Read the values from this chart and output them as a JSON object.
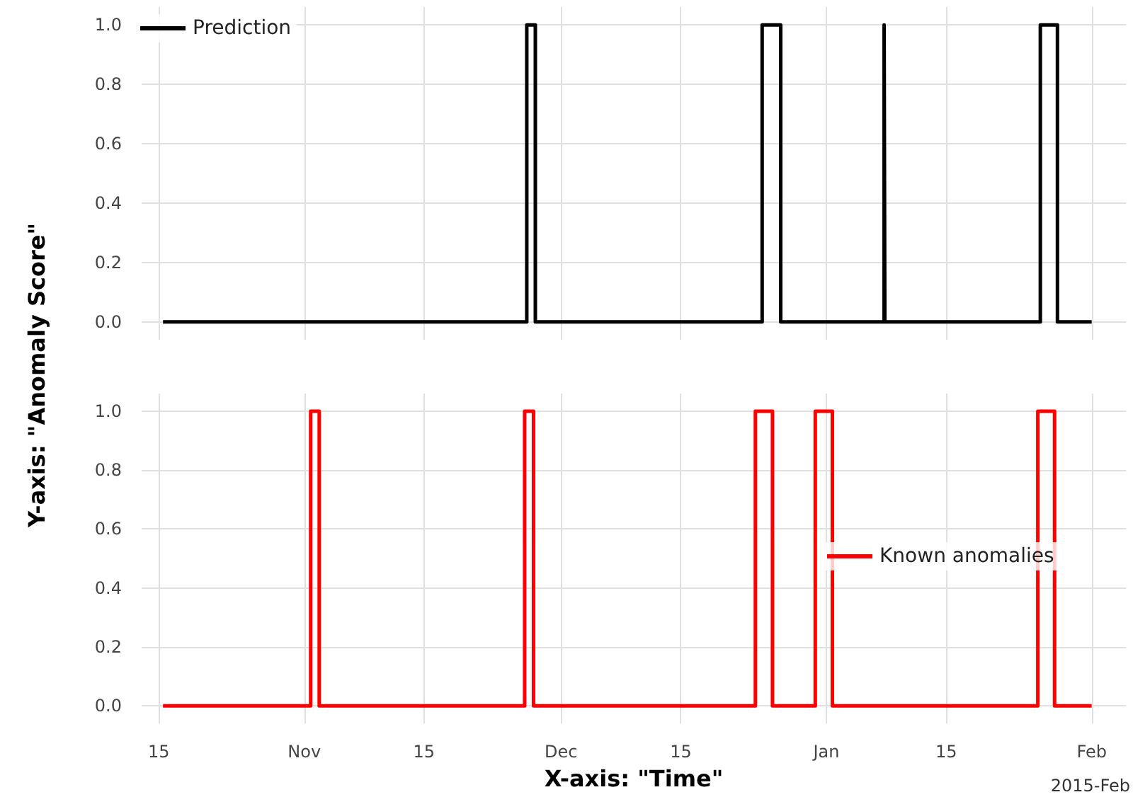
{
  "chart_data": [
    {
      "type": "step",
      "ylabel": "Y-axis: \"Anomaly Score\"",
      "xlim": [
        "2014-10-13",
        "2015-02-05"
      ],
      "xticks": [
        {
          "value": "2014-10-15",
          "label": null
        },
        {
          "value": "2014-11-01",
          "label": null
        },
        {
          "value": "2014-11-15",
          "label": null
        },
        {
          "value": "2014-12-01",
          "label": null
        },
        {
          "value": "2014-12-15",
          "label": null
        },
        {
          "value": "2015-01-01",
          "label": null
        },
        {
          "value": "2015-01-15",
          "label": null
        },
        {
          "value": "2015-02-01",
          "label": null
        }
      ],
      "ylim": [
        -0.06,
        1.06
      ],
      "yticks": [
        {
          "value": 0,
          "label": "0.0"
        },
        {
          "value": 0.2,
          "label": "0.2"
        },
        {
          "value": 0.4,
          "label": "0.4"
        },
        {
          "value": 0.6,
          "label": "0.6"
        },
        {
          "value": 0.8,
          "label": "0.8"
        },
        {
          "value": 1,
          "label": "1.0"
        }
      ],
      "grid": true,
      "legend": "top left",
      "tick_labels": "y",
      "line_style": "solid",
      "marker": "none",
      "series": [
        {
          "name": "Prediction",
          "color": "#000000",
          "x": [
            "2014-10-15T12:00",
            "2014-11-27T00:00",
            "2014-11-28T00:00",
            "2014-12-24T12:00",
            "2014-12-26T16:00",
            "2015-01-07T18:00",
            "2015-01-07T20:00",
            "2015-01-26T00:00",
            "2015-01-28T00:00",
            "2015-02-01T00:00"
          ],
          "values": [
            0,
            1,
            0,
            1,
            0,
            1,
            0,
            1,
            0,
            0
          ]
        }
      ]
    },
    {
      "type": "step",
      "xlabel": "X-axis: \"Time\"",
      "annotations": [
        "2015-Feb"
      ],
      "xlim": [
        "2014-10-13",
        "2015-02-05"
      ],
      "xticks": [
        {
          "value": "2014-10-15",
          "label": "15"
        },
        {
          "value": "2014-11-01",
          "label": "Nov"
        },
        {
          "value": "2014-11-15",
          "label": "15"
        },
        {
          "value": "2014-12-01",
          "label": "Dec"
        },
        {
          "value": "2014-12-15",
          "label": "15"
        },
        {
          "value": "2015-01-01",
          "label": "Jan"
        },
        {
          "value": "2015-01-15",
          "label": "15"
        },
        {
          "value": "2015-02-01",
          "label": "Feb"
        }
      ],
      "ylim": [
        -0.06,
        1.06
      ],
      "yticks": [
        {
          "value": 0,
          "label": "0.0"
        },
        {
          "value": 0.2,
          "label": "0.2"
        },
        {
          "value": 0.4,
          "label": "0.4"
        },
        {
          "value": 0.6,
          "label": "0.6"
        },
        {
          "value": 0.8,
          "label": "0.8"
        },
        {
          "value": 1,
          "label": "1.0"
        }
      ],
      "grid": true,
      "legend": "right",
      "line_style": "solid",
      "marker": "none",
      "series": [
        {
          "name": "Known anomalies",
          "color": "#ff0000",
          "x": [
            "2014-10-15T12:00",
            "2014-11-01T18:00",
            "2014-11-02T18:00",
            "2014-11-26T18:00",
            "2014-11-27T19:00",
            "2014-12-23T17:00",
            "2014-12-25T17:00",
            "2014-12-30T17:00",
            "2015-01-01T17:00",
            "2015-01-25T17:00",
            "2015-01-27T16:00",
            "2015-02-01T00:00"
          ],
          "values": [
            0,
            1,
            0,
            1,
            0,
            1,
            0,
            1,
            0,
            1,
            0,
            0
          ]
        }
      ]
    }
  ]
}
